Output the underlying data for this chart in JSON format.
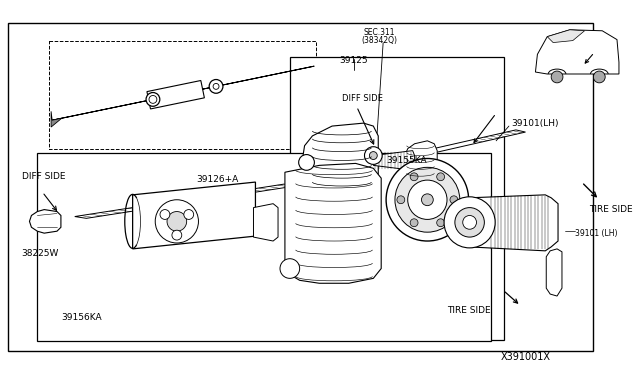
{
  "background_color": "#ffffff",
  "line_color": "#000000",
  "gray_fill": "#d0d0d0",
  "light_fill": "#f0f0f0",
  "part_number": "X391001X",
  "labels": {
    "SEC311": "SEC.311\n(38342Q)",
    "p39125": "39125",
    "p39126A": "39126+A",
    "p38225W": "38225W",
    "p39156KA": "39156KA",
    "p39155KA": "39155KA",
    "p39101LH_top": "39101(LH)",
    "p39101LH_bot": "39101 (LH)",
    "diff_side_top": "DIFF SIDE",
    "diff_side_left": "DIFF SIDE",
    "tire_side_right": "TIRE SIDE",
    "tire_side_bot": "TIRE SIDE"
  },
  "figsize": [
    6.4,
    3.72
  ],
  "dpi": 100
}
